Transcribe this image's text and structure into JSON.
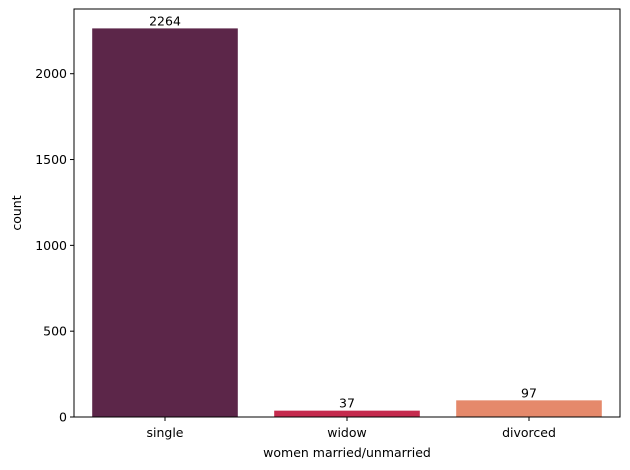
{
  "chart_data": {
    "type": "bar",
    "title": "",
    "xlabel": "women married/unmarried",
    "ylabel": "count",
    "categories": [
      "single",
      "widow",
      "divorced"
    ],
    "values": [
      2264,
      37,
      97
    ],
    "data_labels": [
      "2264",
      "37",
      "97"
    ],
    "colors": [
      "#5c2649",
      "#c52b4e",
      "#e5896b"
    ],
    "ylim": [
      0,
      2377
    ],
    "yticks": [
      0,
      500,
      1000,
      1500,
      2000
    ],
    "grid": false,
    "legend": "none"
  }
}
